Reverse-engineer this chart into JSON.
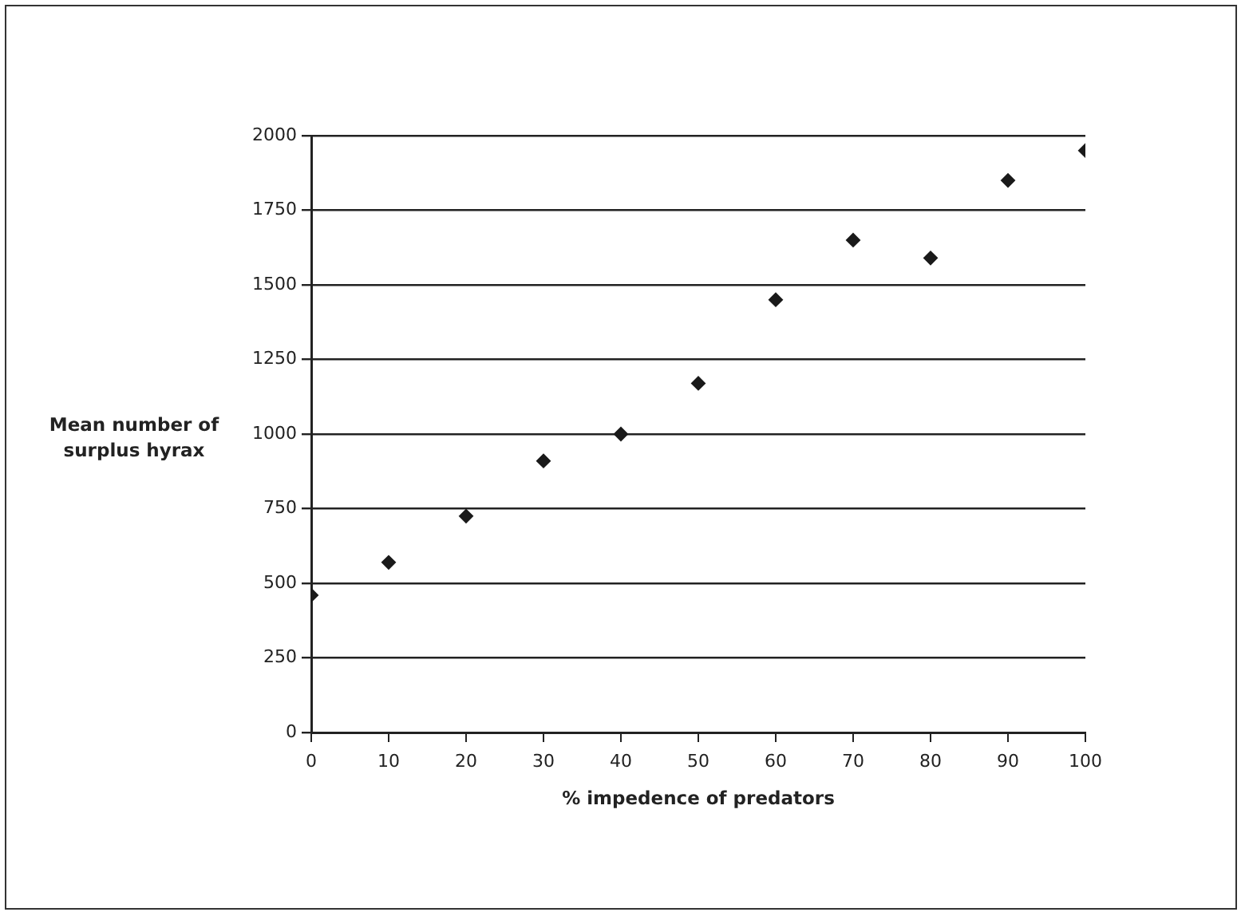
{
  "chart_data": {
    "type": "scatter",
    "xlabel": "% impedence of predators",
    "ylabel": "Mean number of surplus hyrax",
    "x": [
      0,
      10,
      20,
      30,
      40,
      50,
      60,
      70,
      80,
      90,
      100
    ],
    "series": [
      {
        "color": "#1a1a1a",
        "values": [
          460,
          570,
          725,
          910,
          1000,
          1170,
          1450,
          1650,
          1590,
          1850,
          1950
        ]
      }
    ],
    "xlim": [
      0,
      100
    ],
    "xticks": [
      0,
      10,
      20,
      30,
      40,
      50,
      60,
      70,
      80,
      90,
      100
    ],
    "ylim": [
      0,
      2000
    ],
    "yticks": [
      0,
      250,
      500,
      750,
      1000,
      1250,
      1500,
      1750,
      2000
    ],
    "grid": "y",
    "legend": false,
    "marker": "diamond"
  }
}
